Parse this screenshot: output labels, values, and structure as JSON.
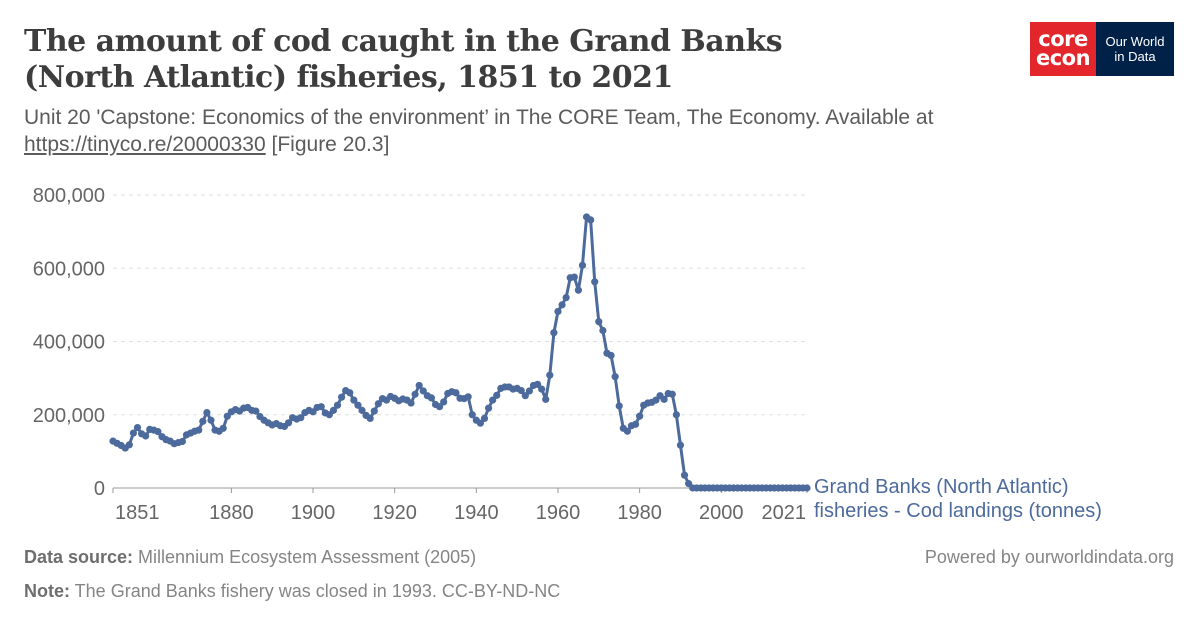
{
  "header": {
    "title": "The amount of cod caught in the Grand Banks (North Atlantic) fisheries, 1851 to 2021",
    "subtitle_text": "Unit 20 'Capstone: Economics of the environment’ in The CORE Team, The Economy. Available at ",
    "subtitle_link": "https://tinyco.re/20000330",
    "subtitle_suffix": " [Figure 20.3]"
  },
  "logos": {
    "core_line1": "core",
    "core_line2": "econ",
    "owid_line1": "Our World",
    "owid_line2": "in Data",
    "core_color": "#e3262b",
    "owid_color": "#002147"
  },
  "footer": {
    "source_label": "Data source:",
    "source_text": " Millennium Ecosystem Assessment (2005)",
    "note_label": "Note:",
    "note_text": " The Grand Banks fishery was closed in 1993. CC-BY-ND-NC",
    "powered": "Powered by ourworldindata.org"
  },
  "chart_data": {
    "type": "line",
    "title": "The amount of cod caught in the Grand Banks (North Atlantic) fisheries, 1851 to 2021",
    "xlabel": "",
    "ylabel": "",
    "xlim": [
      1851,
      2021
    ],
    "ylim": [
      0,
      800000
    ],
    "y_ticks": [
      0,
      200000,
      400000,
      600000,
      800000
    ],
    "y_tick_labels": [
      "0",
      "200,000",
      "400,000",
      "600,000",
      "800,000"
    ],
    "x_ticks": [
      1851,
      1880,
      1900,
      1920,
      1940,
      1960,
      1980,
      2000,
      2021
    ],
    "x_tick_labels": [
      "1851",
      "1880",
      "1900",
      "1920",
      "1940",
      "1960",
      "1980",
      "2000",
      "2021"
    ],
    "grid": "horizontal dashed",
    "line_color": "#4c6a9c",
    "series": [
      {
        "name": "Grand Banks (North Atlantic) fisheries - Cod landings (tonnes)",
        "x": [
          1851,
          1852,
          1853,
          1854,
          1855,
          1856,
          1857,
          1858,
          1859,
          1860,
          1861,
          1862,
          1863,
          1864,
          1865,
          1866,
          1867,
          1868,
          1869,
          1870,
          1871,
          1872,
          1873,
          1874,
          1875,
          1876,
          1877,
          1878,
          1879,
          1880,
          1881,
          1882,
          1883,
          1884,
          1885,
          1886,
          1887,
          1888,
          1889,
          1890,
          1891,
          1892,
          1893,
          1894,
          1895,
          1896,
          1897,
          1898,
          1899,
          1900,
          1901,
          1902,
          1903,
          1904,
          1905,
          1906,
          1907,
          1908,
          1909,
          1910,
          1911,
          1912,
          1913,
          1914,
          1915,
          1916,
          1917,
          1918,
          1919,
          1920,
          1921,
          1922,
          1923,
          1924,
          1925,
          1926,
          1927,
          1928,
          1929,
          1930,
          1931,
          1932,
          1933,
          1934,
          1935,
          1936,
          1937,
          1938,
          1939,
          1940,
          1941,
          1942,
          1943,
          1944,
          1945,
          1946,
          1947,
          1948,
          1949,
          1950,
          1951,
          1952,
          1953,
          1954,
          1955,
          1956,
          1957,
          1958,
          1959,
          1960,
          1961,
          1962,
          1963,
          1964,
          1965,
          1966,
          1967,
          1968,
          1969,
          1970,
          1971,
          1972,
          1973,
          1974,
          1975,
          1976,
          1977,
          1978,
          1979,
          1980,
          1981,
          1982,
          1983,
          1984,
          1985,
          1986,
          1987,
          1988,
          1989,
          1990,
          1991,
          1992,
          1993,
          1994,
          1995,
          1996,
          1997,
          1998,
          1999,
          2000,
          2001,
          2002,
          2003,
          2004,
          2005,
          2006,
          2007,
          2008,
          2009,
          2010,
          2011,
          2012,
          2013,
          2014,
          2015,
          2016,
          2017,
          2018,
          2019,
          2020,
          2021
        ],
        "values": [
          128000,
          122000,
          116000,
          109000,
          118000,
          150000,
          165000,
          148000,
          142000,
          160000,
          158000,
          154000,
          140000,
          132000,
          128000,
          121000,
          124000,
          127000,
          145000,
          150000,
          155000,
          158000,
          182000,
          206000,
          185000,
          158000,
          155000,
          163000,
          196000,
          208000,
          214000,
          210000,
          218000,
          220000,
          212000,
          210000,
          195000,
          185000,
          178000,
          172000,
          176000,
          170000,
          168000,
          178000,
          192000,
          188000,
          192000,
          206000,
          212000,
          208000,
          220000,
          222000,
          205000,
          200000,
          212000,
          226000,
          248000,
          266000,
          260000,
          240000,
          226000,
          212000,
          198000,
          190000,
          210000,
          230000,
          244000,
          240000,
          250000,
          245000,
          238000,
          243000,
          240000,
          232000,
          256000,
          280000,
          265000,
          252000,
          246000,
          228000,
          222000,
          235000,
          258000,
          263000,
          260000,
          245000,
          244000,
          249000,
          200000,
          185000,
          177000,
          190000,
          218000,
          240000,
          253000,
          272000,
          276000,
          276000,
          270000,
          272000,
          266000,
          252000,
          265000,
          280000,
          283000,
          270000,
          242000,
          308000,
          424000,
          482000,
          500000,
          520000,
          574000,
          576000,
          540000,
          608000,
          740000,
          732000,
          563000,
          454000,
          430000,
          368000,
          362000,
          304000,
          224000,
          163000,
          155000,
          170000,
          174000,
          196000,
          226000,
          232000,
          234000,
          240000,
          252000,
          242000,
          258000,
          256000,
          200000,
          117000,
          35000,
          12000,
          0,
          0,
          0,
          0,
          0,
          0,
          0,
          0,
          0,
          0,
          0,
          0,
          0,
          0,
          0,
          0,
          0,
          0,
          0,
          0,
          0,
          0,
          0,
          0,
          0,
          0,
          0,
          0,
          0
        ]
      }
    ]
  }
}
